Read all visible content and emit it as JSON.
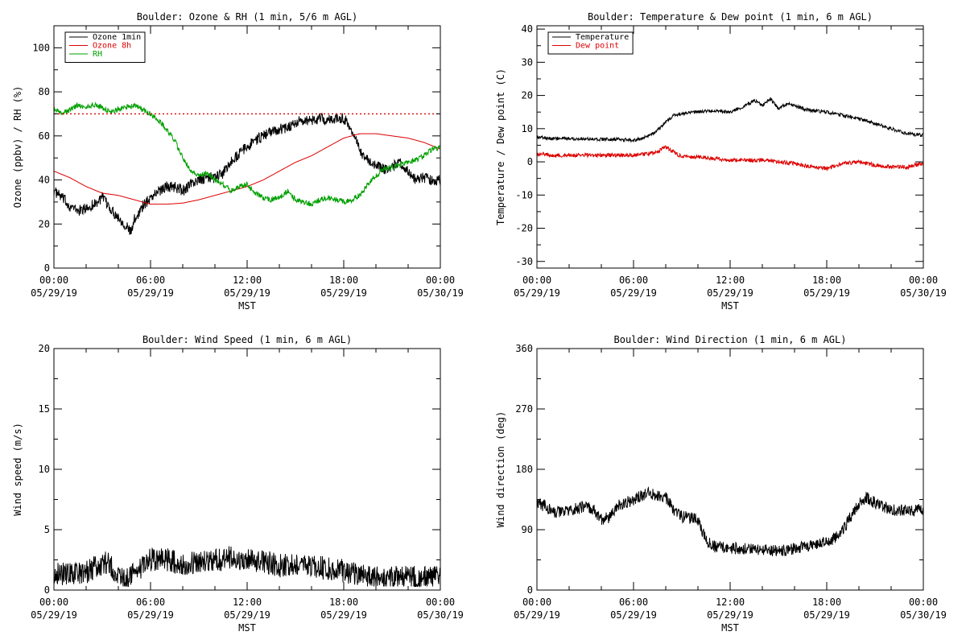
{
  "x_axis": {
    "tick_times": [
      "00:00",
      "06:00",
      "12:00",
      "18:00",
      "00:00"
    ],
    "tick_dates": [
      "05/29/19",
      "05/29/19",
      "05/29/19",
      "05/29/19",
      "05/30/19"
    ],
    "label": "MST",
    "range_hours": [
      0,
      24
    ]
  },
  "colors": {
    "black": "#000000",
    "red": "#dd0000",
    "green": "#00a000"
  },
  "chart_data": [
    {
      "type": "line",
      "title": "Boulder: Ozone & RH (1 min, 5/6 m AGL)",
      "ylabel": "Ozone (ppbv) / RH (%)",
      "ylim": [
        0,
        110
      ],
      "yticks": [
        0,
        20,
        40,
        60,
        80,
        100
      ],
      "legend_position": "top-left",
      "reference_line": {
        "y": 70,
        "style": "dotted",
        "color": "#dd0000"
      },
      "series": [
        {
          "name": "Ozone 1min",
          "color": "#000000",
          "noise": 2.5,
          "x": [
            0,
            0.5,
            1,
            1.5,
            2,
            2.5,
            3,
            3.5,
            4,
            4.5,
            4.8,
            5,
            5.5,
            6,
            6.5,
            7,
            7.5,
            8,
            8.5,
            9,
            9.5,
            10,
            10.5,
            11,
            11.5,
            12,
            12.5,
            13,
            13.5,
            14,
            14.5,
            15,
            15.5,
            16,
            16.5,
            17,
            17.5,
            18,
            18.5,
            19,
            19.5,
            20,
            20.5,
            21,
            21.5,
            22,
            22.5,
            23,
            23.5,
            24
          ],
          "y": [
            35,
            32,
            28,
            26,
            27,
            29,
            32,
            27,
            23,
            19,
            16,
            22,
            28,
            32,
            35,
            37,
            37,
            35,
            38,
            40,
            41,
            41,
            43,
            48,
            52,
            55,
            58,
            60,
            62,
            63,
            64,
            66,
            67,
            67,
            68,
            67,
            68,
            68,
            63,
            53,
            49,
            47,
            45,
            46,
            48,
            44,
            40,
            41,
            40,
            40
          ]
        },
        {
          "name": "Ozone 8h",
          "color": "#dd0000",
          "noise": 0,
          "x": [
            0,
            1,
            2,
            3,
            4,
            5,
            6,
            7,
            8,
            9,
            10,
            11,
            12,
            13,
            14,
            15,
            16,
            17,
            18,
            19,
            20,
            21,
            22,
            23,
            24
          ],
          "y": [
            44,
            41,
            37,
            34,
            33,
            31,
            29,
            29,
            29.5,
            31,
            33,
            35,
            37,
            40,
            44,
            48,
            51,
            55,
            59,
            61,
            61,
            60,
            59,
            57,
            54
          ]
        },
        {
          "name": "RH",
          "color": "#00a000",
          "noise": 1.2,
          "x": [
            0,
            0.5,
            1,
            1.5,
            2,
            2.5,
            3,
            3.5,
            4,
            4.5,
            5,
            5.5,
            6,
            6.5,
            7,
            7.5,
            8,
            8.5,
            9,
            9.5,
            10,
            10.5,
            11,
            11.5,
            12,
            12.5,
            13,
            13.5,
            14,
            14.5,
            15,
            15.5,
            16,
            16.5,
            17,
            17.5,
            18,
            18.5,
            19,
            19.5,
            20,
            20.5,
            21,
            21.5,
            22,
            22.5,
            23,
            23.5,
            24
          ],
          "y": [
            72,
            70,
            72,
            74,
            73,
            74,
            73,
            71,
            72,
            73,
            74,
            72,
            70,
            67,
            63,
            58,
            50,
            44,
            42,
            43,
            40,
            38,
            35,
            37,
            38,
            34,
            32,
            31,
            32,
            35,
            31,
            30,
            29,
            31,
            32,
            31,
            30,
            31,
            33,
            38,
            42,
            45,
            46,
            47,
            48,
            49,
            51,
            54,
            55
          ]
        }
      ]
    },
    {
      "type": "line",
      "title": "Boulder: Temperature & Dew point (1 min, 6 m AGL)",
      "ylabel": "Temperature / Dew point (C)",
      "ylim": [
        -32,
        41
      ],
      "yticks": [
        -30,
        -20,
        -10,
        0,
        10,
        20,
        30,
        40
      ],
      "legend_position": "top-left",
      "series": [
        {
          "name": "Temperature",
          "color": "#000000",
          "noise": 0.5,
          "x": [
            0,
            1,
            2,
            3,
            4,
            5,
            6,
            6.5,
            7,
            7.5,
            8,
            8.5,
            9,
            10,
            11,
            12,
            12.5,
            13,
            13.5,
            14,
            14.5,
            15,
            15.5,
            16,
            16.5,
            17,
            18,
            19,
            20,
            21,
            22,
            23,
            24
          ],
          "y": [
            7.5,
            7,
            7,
            7,
            6.8,
            6.8,
            6.5,
            7,
            8,
            9.5,
            12,
            14,
            14.5,
            15,
            15.5,
            15,
            16,
            17,
            18.5,
            17,
            19,
            16,
            17.5,
            17,
            16,
            15.5,
            15,
            14,
            13,
            11.5,
            10,
            8.5,
            8
          ]
        },
        {
          "name": "Dew point",
          "color": "#dd0000",
          "noise": 0.6,
          "x": [
            0,
            1,
            2,
            3,
            4,
            5,
            6,
            7,
            7.5,
            8,
            8.5,
            9,
            10,
            11,
            12,
            13,
            14,
            15,
            16,
            17,
            18,
            19,
            20,
            21,
            22,
            23,
            24
          ],
          "y": [
            2.5,
            2,
            2,
            2,
            2,
            2,
            2,
            2.5,
            3,
            4.5,
            3,
            1.5,
            1.5,
            1,
            0.5,
            0.5,
            0.5,
            0,
            -0.5,
            -1.5,
            -2,
            -0.5,
            0,
            -1,
            -1.5,
            -1.5,
            -0.5
          ]
        }
      ]
    },
    {
      "type": "line",
      "title": "Boulder: Wind Speed (1 min, 6 m AGL)",
      "ylabel": "Wind speed (m/s)",
      "ylim": [
        0,
        20
      ],
      "yticks": [
        0,
        5,
        10,
        15,
        20
      ],
      "series": [
        {
          "name": "",
          "color": "#000000",
          "noise": 1.0,
          "x": [
            0,
            1,
            2,
            3,
            3.5,
            4,
            4.5,
            5,
            6,
            7,
            8,
            9,
            10,
            11,
            12,
            13,
            14,
            15,
            16,
            17,
            18,
            19,
            20,
            21,
            22,
            23,
            24
          ],
          "y": [
            1.5,
            1.3,
            1.5,
            2.2,
            2.2,
            1.0,
            1.0,
            1.4,
            2.5,
            2.5,
            2.2,
            2.3,
            2.5,
            2.7,
            2.5,
            2.4,
            2.0,
            2.2,
            2.0,
            1.8,
            1.6,
            1.3,
            1.0,
            1.0,
            1.2,
            1.1,
            1.2
          ]
        }
      ]
    },
    {
      "type": "line",
      "title": "Boulder: Wind Direction (1 min, 6 m AGL)",
      "ylabel": "Wind direction (deg)",
      "ylim": [
        0,
        360
      ],
      "yticks": [
        0,
        90,
        180,
        270,
        360
      ],
      "series": [
        {
          "name": "",
          "color": "#000000",
          "noise": 9,
          "x": [
            0,
            0.5,
            1,
            2,
            3,
            3.5,
            4,
            4.5,
            5,
            6,
            7,
            8,
            8.5,
            9,
            10,
            10.5,
            11,
            12,
            13,
            14,
            15,
            16,
            17,
            18,
            18.5,
            19,
            19.5,
            20,
            20.5,
            21,
            22,
            23,
            24
          ],
          "y": [
            130,
            125,
            115,
            118,
            125,
            120,
            105,
            108,
            125,
            135,
            145,
            138,
            120,
            110,
            105,
            75,
            65,
            62,
            62,
            60,
            58,
            62,
            68,
            70,
            78,
            90,
            110,
            130,
            138,
            130,
            120,
            118,
            120
          ]
        }
      ]
    }
  ]
}
